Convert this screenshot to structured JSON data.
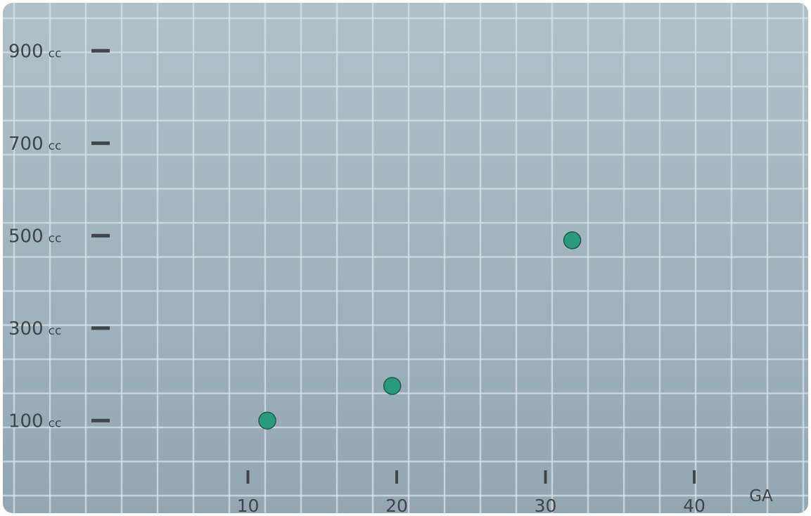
{
  "chart_data": {
    "type": "scatter",
    "title": "",
    "xlabel": "GA",
    "ylabel": "",
    "xlim": [
      0,
      45
    ],
    "ylim": [
      0,
      1000
    ],
    "x_ticks": [
      10,
      20,
      30,
      40
    ],
    "x_tick_labels": [
      "10",
      "20",
      "30",
      "40"
    ],
    "y_ticks": [
      100,
      300,
      500,
      700,
      900
    ],
    "y_tick_values": [
      "100",
      "300",
      "500",
      "700",
      "900"
    ],
    "y_tick_unit": "cc",
    "grid": true,
    "legend": "none",
    "series": [
      {
        "points": [
          {
            "x": 11.3,
            "y": 100
          },
          {
            "x": 19.7,
            "y": 175
          },
          {
            "x": 31.8,
            "y": 490
          }
        ],
        "color": "#2a9a7e"
      }
    ],
    "colors": {
      "panel_background": "#a3b5c0",
      "grid_line": "#d8e2e8",
      "marker_outline": "#1f5c4c",
      "text": "#3f454b"
    }
  }
}
